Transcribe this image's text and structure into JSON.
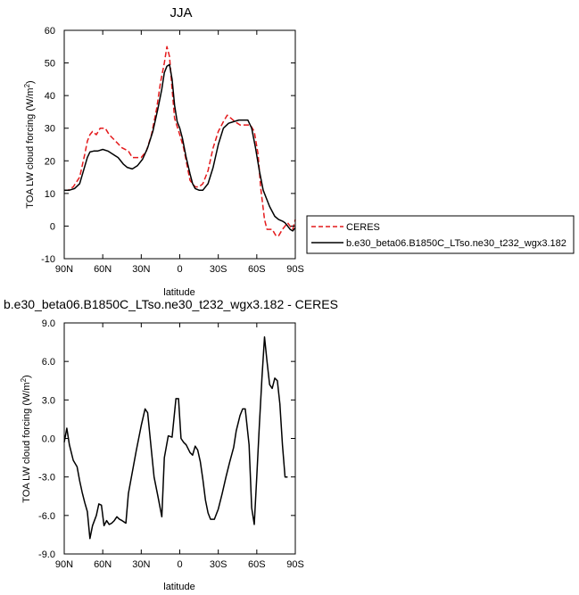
{
  "chart_data": [
    {
      "type": "line",
      "title": "JJA",
      "xlabel": "latitude",
      "ylabel": "TOA LW cloud forcing (W/m²)",
      "ylabel_main": "TOA LW cloud forcing (W/m",
      "ylabel_sup": "2",
      "ylabel_end": ")",
      "xlim": [
        -90,
        90
      ],
      "ylim": [
        -10,
        60
      ],
      "x_ticks": [
        -90,
        -60,
        -30,
        0,
        30,
        60,
        90
      ],
      "x_tick_labels": [
        "90N",
        "60N",
        "30N",
        "0",
        "30S",
        "60S",
        "90S"
      ],
      "y_ticks": [
        -10,
        0,
        10,
        20,
        30,
        40,
        50,
        60
      ],
      "y_tick_labels": [
        "-10",
        "0",
        "10",
        "20",
        "30",
        "40",
        "50",
        "60"
      ],
      "grid": false,
      "legend_position": "right",
      "series": [
        {
          "name": "CERES",
          "color": "#e41a1c",
          "dash": "dashed",
          "points": [
            [
              -90,
              11
            ],
            [
              -87,
              11
            ],
            [
              -83,
              12
            ],
            [
              -78,
              15
            ],
            [
              -74,
              22
            ],
            [
              -72,
              26
            ],
            [
              -70,
              28
            ],
            [
              -68,
              29
            ],
            [
              -65,
              28
            ],
            [
              -62,
              30
            ],
            [
              -58,
              30
            ],
            [
              -55,
              28
            ],
            [
              -50,
              26
            ],
            [
              -45,
              24
            ],
            [
              -40,
              23
            ],
            [
              -37,
              21
            ],
            [
              -34,
              21
            ],
            [
              -30,
              21
            ],
            [
              -26,
              23
            ],
            [
              -22,
              28
            ],
            [
              -18,
              36
            ],
            [
              -15,
              44
            ],
            [
              -12,
              50
            ],
            [
              -10,
              55
            ],
            [
              -8,
              52
            ],
            [
              -6,
              42
            ],
            [
              -4,
              33
            ],
            [
              0,
              28
            ],
            [
              3,
              24
            ],
            [
              6,
              18
            ],
            [
              8,
              14
            ],
            [
              12,
              12
            ],
            [
              15,
              12
            ],
            [
              18,
              13
            ],
            [
              22,
              17
            ],
            [
              26,
              24
            ],
            [
              30,
              29
            ],
            [
              34,
              32
            ],
            [
              37,
              34
            ],
            [
              40,
              33
            ],
            [
              43,
              32
            ],
            [
              47,
              31
            ],
            [
              50,
              31
            ],
            [
              53,
              31
            ],
            [
              55,
              31
            ],
            [
              58,
              29
            ],
            [
              61,
              22
            ],
            [
              63,
              12
            ],
            [
              66,
              2
            ],
            [
              68,
              -1
            ],
            [
              72,
              -1
            ],
            [
              75,
              -3
            ],
            [
              77,
              -3
            ],
            [
              80,
              -1
            ],
            [
              84,
              1
            ],
            [
              86,
              0
            ],
            [
              88,
              -1
            ],
            [
              90,
              2
            ]
          ]
        },
        {
          "name": "b.e30_beta06.B1850C_LTso.ne30_t232_wgx3.182",
          "color": "#000000",
          "dash": "solid",
          "points": [
            [
              -90,
              11
            ],
            [
              -86,
              11
            ],
            [
              -82,
              11.5
            ],
            [
              -78,
              13
            ],
            [
              -75,
              17
            ],
            [
              -72,
              21
            ],
            [
              -70,
              22.7
            ],
            [
              -67,
              23
            ],
            [
              -64,
              23
            ],
            [
              -60,
              23.5
            ],
            [
              -56,
              23
            ],
            [
              -52,
              22
            ],
            [
              -48,
              21
            ],
            [
              -44,
              19
            ],
            [
              -41,
              18
            ],
            [
              -37,
              17.5
            ],
            [
              -33,
              18.5
            ],
            [
              -29,
              20.5
            ],
            [
              -25,
              24
            ],
            [
              -21,
              29
            ],
            [
              -17,
              36
            ],
            [
              -14,
              42
            ],
            [
              -12,
              47
            ],
            [
              -10,
              49
            ],
            [
              -8,
              49.5
            ],
            [
              -6,
              45
            ],
            [
              -4,
              37
            ],
            [
              -2,
              32
            ],
            [
              0,
              30
            ],
            [
              2,
              27
            ],
            [
              5,
              21
            ],
            [
              8,
              16
            ],
            [
              10,
              13
            ],
            [
              12,
              11.5
            ],
            [
              15,
              11
            ],
            [
              18,
              11
            ],
            [
              22,
              13
            ],
            [
              26,
              18
            ],
            [
              30,
              25
            ],
            [
              34,
              30
            ],
            [
              38,
              31.5
            ],
            [
              42,
              32
            ],
            [
              46,
              32.5
            ],
            [
              50,
              32.5
            ],
            [
              53,
              32.5
            ],
            [
              56,
              30
            ],
            [
              59,
              24
            ],
            [
              62,
              17
            ],
            [
              65,
              11
            ],
            [
              70,
              6
            ],
            [
              74,
              3
            ],
            [
              77,
              2
            ],
            [
              80,
              1.5
            ],
            [
              82,
              1
            ],
            [
              84,
              0
            ],
            [
              86,
              -1
            ],
            [
              88,
              -1.5
            ],
            [
              90,
              -0.5
            ]
          ]
        }
      ]
    },
    {
      "type": "line",
      "title": "b.e30_beta06.B1850C_LTso.ne30_t232_wgx3.182 - CERES",
      "xlabel": "latitude",
      "ylabel": "TOA LW cloud forcing (W/m²)",
      "ylabel_main": "TOA LW cloud forcing (W/m",
      "ylabel_sup": "2",
      "ylabel_end": ")",
      "xlim": [
        -90,
        90
      ],
      "ylim": [
        -9,
        9
      ],
      "x_ticks": [
        -90,
        -60,
        -30,
        0,
        30,
        60,
        90
      ],
      "x_tick_labels": [
        "90N",
        "60N",
        "30N",
        "0",
        "30S",
        "60S",
        "90S"
      ],
      "y_ticks": [
        -9,
        -6,
        -3,
        0,
        3,
        6,
        9
      ],
      "y_tick_labels": [
        "-9.0",
        "-6.0",
        "-3.0",
        "0.0",
        "3.0",
        "6.0",
        "9.0"
      ],
      "grid": false,
      "series": [
        {
          "color": "#000000",
          "dash": "solid",
          "points": [
            [
              -90,
              -0.3
            ],
            [
              -88,
              0.8
            ],
            [
              -86,
              -0.5
            ],
            [
              -83,
              -1.7
            ],
            [
              -80,
              -2.2
            ],
            [
              -78,
              -3.3
            ],
            [
              -76,
              -4.2
            ],
            [
              -74,
              -5.0
            ],
            [
              -72,
              -5.7
            ],
            [
              -70,
              -7.8
            ],
            [
              -68,
              -6.8
            ],
            [
              -65,
              -6.0
            ],
            [
              -63,
              -5.1
            ],
            [
              -61,
              -5.2
            ],
            [
              -59,
              -6.8
            ],
            [
              -57,
              -6.4
            ],
            [
              -55,
              -6.7
            ],
            [
              -53,
              -6.6
            ],
            [
              -51,
              -6.4
            ],
            [
              -49,
              -6.1
            ],
            [
              -47,
              -6.3
            ],
            [
              -45,
              -6.4
            ],
            [
              -42,
              -6.6
            ],
            [
              -40,
              -4.3
            ],
            [
              -38,
              -3.2
            ],
            [
              -34,
              -1.0
            ],
            [
              -30,
              1.0
            ],
            [
              -27,
              2.3
            ],
            [
              -25,
              2.0
            ],
            [
              -22,
              -1.0
            ],
            [
              -20,
              -3.0
            ],
            [
              -17,
              -4.5
            ],
            [
              -14,
              -6.1
            ],
            [
              -12,
              -1.5
            ],
            [
              -9,
              0.2
            ],
            [
              -6,
              0.1
            ],
            [
              -3,
              3.1
            ],
            [
              -1,
              3.1
            ],
            [
              1,
              0.0
            ],
            [
              3,
              -0.3
            ],
            [
              5,
              -0.5
            ],
            [
              8,
              -1.1
            ],
            [
              10,
              -1.3
            ],
            [
              12,
              -0.6
            ],
            [
              14,
              -0.9
            ],
            [
              16,
              -1.8
            ],
            [
              18,
              -3.2
            ],
            [
              20,
              -4.8
            ],
            [
              22,
              -5.8
            ],
            [
              24,
              -6.3
            ],
            [
              27,
              -6.3
            ],
            [
              30,
              -5.5
            ],
            [
              33,
              -4.3
            ],
            [
              36,
              -3.0
            ],
            [
              39,
              -1.8
            ],
            [
              42,
              -0.7
            ],
            [
              44,
              0.6
            ],
            [
              47,
              1.8
            ],
            [
              49,
              2.3
            ],
            [
              51,
              2.3
            ],
            [
              54,
              -0.5
            ],
            [
              56,
              -5.4
            ],
            [
              58,
              -6.7
            ],
            [
              60,
              -3.0
            ],
            [
              62,
              1.0
            ],
            [
              64,
              4.7
            ],
            [
              66,
              7.9
            ],
            [
              68,
              6.0
            ],
            [
              70,
              4.2
            ],
            [
              72,
              3.9
            ],
            [
              74,
              4.7
            ],
            [
              76,
              4.5
            ],
            [
              78,
              2.7
            ],
            [
              80,
              -0.5
            ],
            [
              82,
              -3.0
            ],
            [
              84,
              -3.0
            ]
          ]
        }
      ]
    }
  ]
}
